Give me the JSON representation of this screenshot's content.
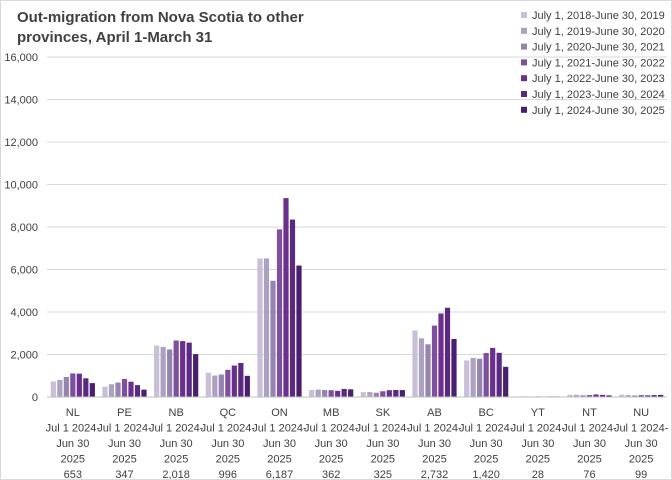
{
  "chart_data": {
    "type": "bar",
    "title_lines": [
      "Out-migration from Nova Scotia to other",
      "provinces, April 1-March 31"
    ],
    "ylim": [
      0,
      16000
    ],
    "yticks": [
      "0",
      "2,000",
      "4,000",
      "6,000",
      "8,000",
      "10,000",
      "12,000",
      "14,000",
      "16,000"
    ],
    "ytick_values": [
      0,
      2000,
      4000,
      6000,
      8000,
      10000,
      12000,
      14000,
      16000
    ],
    "grid": true,
    "legend_position": "top-right",
    "categories": [
      "NL",
      "PE",
      "NB",
      "QC",
      "ON",
      "MB",
      "SK",
      "AB",
      "BC",
      "YT",
      "NT",
      "NU"
    ],
    "category_sublabel_lines": [
      "Jul 1 2024-",
      "Jun 30",
      "2025"
    ],
    "category_value_labels": [
      "653",
      "347",
      "2,018",
      "996",
      "6,187",
      "362",
      "325",
      "2,732",
      "1,420",
      "28",
      "76",
      "99"
    ],
    "series": [
      {
        "name": "July 1, 2018-June 30, 2019",
        "color": "#c9bfd6",
        "values": [
          730,
          480,
          2420,
          1140,
          6520,
          330,
          230,
          3130,
          1720,
          25,
          110,
          110
        ]
      },
      {
        "name": "July 1, 2019-June 30, 2020",
        "color": "#ada1c2",
        "values": [
          800,
          600,
          2360,
          1010,
          6520,
          350,
          230,
          2760,
          1840,
          30,
          100,
          90
        ]
      },
      {
        "name": "July 1, 2020-June 30, 2021",
        "color": "#9484ae",
        "values": [
          940,
          680,
          2240,
          1060,
          5470,
          330,
          200,
          2480,
          1800,
          25,
          80,
          70
        ]
      },
      {
        "name": "July 1, 2021-June 30, 2022",
        "color": "#7d4f9e",
        "values": [
          1110,
          850,
          2660,
          1280,
          7890,
          320,
          270,
          3360,
          2070,
          30,
          90,
          90
        ]
      },
      {
        "name": "July 1, 2022-June 30, 2023",
        "color": "#6a2f8f",
        "values": [
          1100,
          720,
          2630,
          1480,
          9360,
          290,
          320,
          3930,
          2310,
          25,
          120,
          80
        ]
      },
      {
        "name": "July 1, 2023-June 30, 2024",
        "color": "#5a2a82",
        "values": [
          880,
          560,
          2560,
          1600,
          8350,
          380,
          330,
          4200,
          2080,
          30,
          100,
          90
        ]
      },
      {
        "name": "July 1, 2024-June 30, 2025",
        "color": "#4a1f6f",
        "values": [
          653,
          347,
          2018,
          996,
          6187,
          362,
          325,
          2732,
          1420,
          28,
          76,
          99
        ]
      }
    ]
  }
}
